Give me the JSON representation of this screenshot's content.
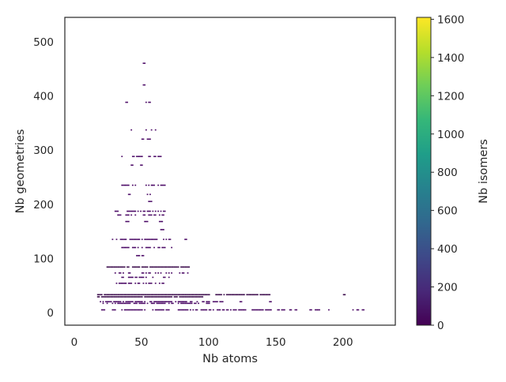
{
  "chart_data": {
    "type": "heatmap",
    "xlabel": "Nb atoms",
    "ylabel": "Nb geometries",
    "xlim": [
      -7,
      239
    ],
    "ylim": [
      -23,
      545
    ],
    "xticks": [
      0,
      50,
      100,
      150,
      200
    ],
    "yticks": [
      0,
      100,
      200,
      300,
      400,
      500
    ],
    "grid": false,
    "colorbar": {
      "label": "Nb isomers",
      "colormap": "viridis",
      "range": [
        0,
        1610
      ],
      "ticks": [
        0,
        200,
        400,
        600,
        800,
        1000,
        1200,
        1400,
        1600
      ],
      "colors": [
        "#440154",
        "#482878",
        "#3e4989",
        "#31688e",
        "#26828e",
        "#1f9e89",
        "#35b779",
        "#6ece58",
        "#b5de2b",
        "#fde725"
      ]
    },
    "note_values": "occupied bins: each row lists the Nb geometries value and the Nb atoms ranges containing low-count bins (all near 0 on the color scale)",
    "rows": [
      {
        "y": 460,
        "x": [
          [
            51,
            52
          ]
        ],
        "count": 1
      },
      {
        "y": 420,
        "x": [
          [
            51,
            52
          ]
        ],
        "count": 1
      },
      {
        "y": 388,
        "x": [
          [
            38,
            39
          ],
          [
            53,
            56
          ]
        ],
        "count": 1
      },
      {
        "y": 337,
        "x": [
          [
            40,
            44
          ],
          [
            49,
            53
          ],
          [
            57,
            60
          ]
        ],
        "count": 1
      },
      {
        "y": 320,
        "x": [
          [
            50,
            51
          ],
          [
            54,
            56
          ]
        ],
        "count": 1
      },
      {
        "y": 303,
        "x": [
          [
            52,
            55
          ]
        ],
        "count": 1
      },
      {
        "y": 288,
        "x": [
          [
            35,
            65
          ]
        ],
        "count": 2
      },
      {
        "y": 272,
        "x": [
          [
            42,
            43
          ],
          [
            49,
            50
          ]
        ],
        "count": 1
      },
      {
        "y": 235,
        "x": [
          [
            33,
            67
          ]
        ],
        "count": 3
      },
      {
        "y": 218,
        "x": [
          [
            40,
            41
          ],
          [
            53,
            56
          ]
        ],
        "count": 1
      },
      {
        "y": 205,
        "x": [
          [
            55,
            57
          ]
        ],
        "count": 1
      },
      {
        "y": 187,
        "x": [
          [
            30,
            67
          ]
        ],
        "count": 8
      },
      {
        "y": 180,
        "x": [
          [
            32,
            66
          ]
        ],
        "count": 6
      },
      {
        "y": 168,
        "x": [
          [
            38,
            40
          ],
          [
            52,
            54
          ],
          [
            63,
            65
          ]
        ],
        "count": 1
      },
      {
        "y": 153,
        "x": [
          [
            64,
            66
          ]
        ],
        "count": 1
      },
      {
        "y": 135,
        "x": [
          [
            28,
            72
          ],
          [
            82,
            83
          ]
        ],
        "count": 10
      },
      {
        "y": 120,
        "x": [
          [
            35,
            72
          ]
        ],
        "count": 2
      },
      {
        "y": 105,
        "x": [
          [
            45,
            56
          ]
        ],
        "count": 1
      },
      {
        "y": 84,
        "x": [
          [
            23,
            85
          ]
        ],
        "count": 14
      },
      {
        "y": 73,
        "x": [
          [
            30,
            84
          ]
        ],
        "count": 4
      },
      {
        "y": 65,
        "x": [
          [
            35,
            70
          ]
        ],
        "count": 3
      },
      {
        "y": 54,
        "x": [
          [
            30,
            70
          ]
        ],
        "count": 2
      },
      {
        "y": 33,
        "x": [
          [
            17,
            100
          ],
          [
            105,
            145
          ],
          [
            200,
            201
          ]
        ],
        "count": 20
      },
      {
        "y": 29,
        "x": [
          [
            17,
            95
          ]
        ],
        "count": 18
      },
      {
        "y": 20,
        "x": [
          [
            18,
            110
          ],
          [
            123,
            124
          ],
          [
            145,
            146
          ]
        ],
        "count": 9
      },
      {
        "y": 17,
        "x": [
          [
            20,
            100
          ]
        ],
        "count": 6
      },
      {
        "y": 5,
        "x": [
          [
            20,
            165
          ],
          [
            175,
            190
          ],
          [
            205,
            215
          ]
        ],
        "count": 7
      }
    ]
  }
}
